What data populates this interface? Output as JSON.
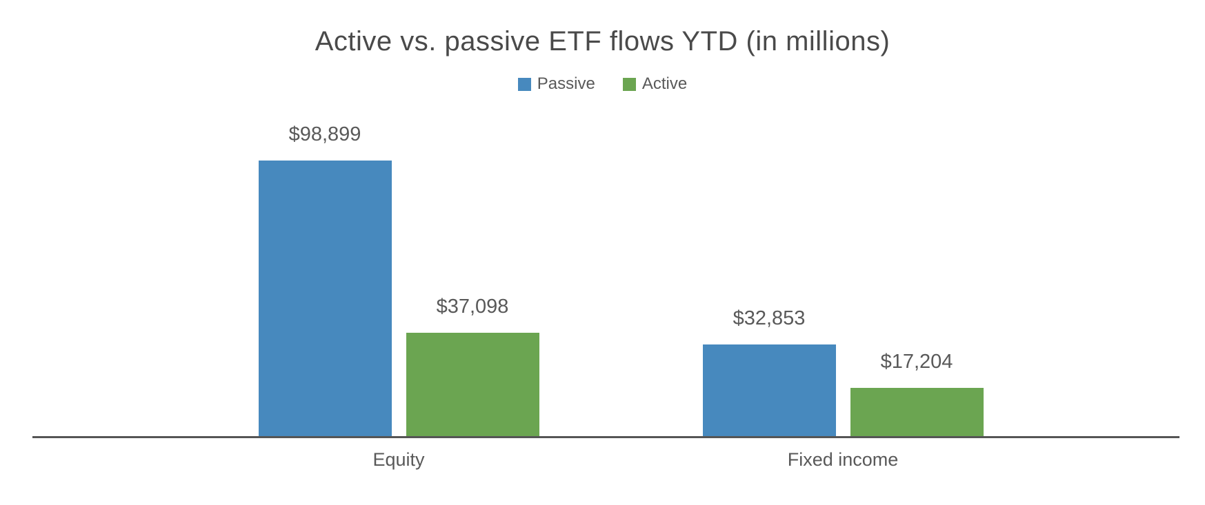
{
  "page": {
    "background": "#ffffff"
  },
  "chart_data": {
    "type": "bar",
    "title": "Active vs. passive ETF flows YTD (in millions)",
    "title_color": "#4a4a4a",
    "text_color": "#595959",
    "axis_line_color": "#555555",
    "categories": [
      "Equity",
      "Fixed income"
    ],
    "series": [
      {
        "name": "Passive",
        "color": "#4789be",
        "values": [
          98899,
          32853
        ],
        "labels": [
          "$98,899",
          "$32,853"
        ]
      },
      {
        "name": "Active",
        "color": "#6ba551",
        "values": [
          37098,
          17204
        ],
        "labels": [
          "$37,098",
          "$17,204"
        ]
      }
    ],
    "value_prefix": "$",
    "legend_position": "top",
    "grid": false,
    "y_axis_visible": false,
    "ylim": [
      0,
      100000
    ]
  }
}
